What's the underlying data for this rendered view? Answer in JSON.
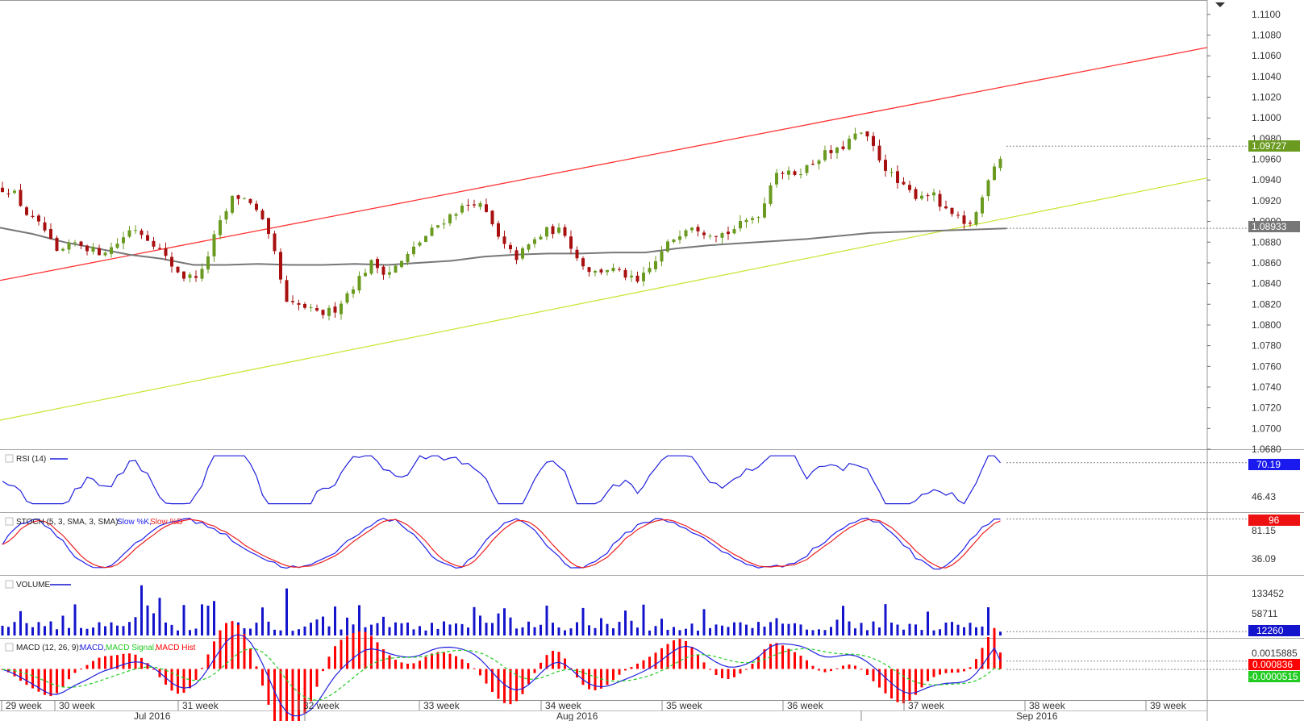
{
  "chart_data": {
    "type": "candlestick",
    "main": {
      "ylim": [
        1.068,
        1.111
      ],
      "ticks": [
        "1.1100",
        "1.1080",
        "1.1060",
        "1.1040",
        "1.1020",
        "1.1000",
        "1.0980",
        "1.0960",
        "1.0940",
        "1.0920",
        "1.0900",
        "1.0880",
        "1.0860",
        "1.0840",
        "1.0820",
        "1.0800",
        "1.0780",
        "1.0760",
        "1.0740",
        "1.0720",
        "1.0700",
        "1.0680"
      ],
      "last_price": "1.09727",
      "ma_value": "1.08933",
      "trendlines": [
        {
          "color": "#ff3333",
          "from": [
            0,
            1.0843
          ],
          "to": [
            1497,
            1.1068
          ]
        },
        {
          "color": "#c8e83c",
          "from": [
            0,
            1.0708
          ],
          "to": [
            1497,
            1.0942
          ]
        }
      ]
    },
    "rsi": {
      "label": "RSI (14)",
      "tick": "46.43",
      "value": "70.19",
      "ylim": [
        20,
        80
      ]
    },
    "stoch": {
      "label": "STOCH (5, 3, SMA, 3, SMA):",
      "k_label": "Slow %K,",
      "d_label": "Slow %D",
      "ticks": [
        "81.15",
        "36.09"
      ],
      "value": "96",
      "ylim": [
        0,
        100
      ]
    },
    "volume": {
      "label": "VOLUME",
      "ticks": [
        "133452",
        "58711"
      ],
      "value": "12260",
      "ylim": [
        0,
        180000
      ]
    },
    "macd": {
      "label": "MACD (12, 26, 9):",
      "macd_label": "MACD,",
      "signal_label": "MACD Signal,",
      "hist_label": "MACD Hist",
      "tick": "0.0015885",
      "value": "0.000836",
      "signal_value": "-0.0000515",
      "ylim": [
        -0.0028,
        0.0028
      ]
    },
    "x_axis": {
      "weeks": [
        "29 week",
        "30 week",
        "31 week",
        "32 week",
        "33 week",
        "34 week",
        "35 week",
        "36 week",
        "37 week",
        "38 week",
        "39 week"
      ],
      "months": [
        "Jul 2016",
        "Aug 2016",
        "Sep 2016"
      ]
    },
    "colors": {
      "bull": "#6a9a1f",
      "bear": "#a81010",
      "ma": "#777777",
      "rsi": "#2020dd",
      "k": "#2020ee",
      "d": "#ee2020",
      "vol": "#1414cc",
      "macd": "#2020dd",
      "signal": "#22cc22",
      "hist": "#ff0000"
    }
  }
}
